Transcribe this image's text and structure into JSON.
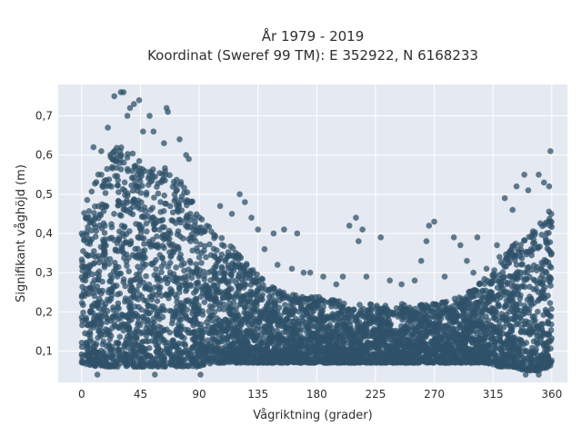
{
  "chart_data": {
    "type": "scatter",
    "title": [
      "År 1979 - 2019",
      "Koordinat (Sweref 99 TM): E 352922, N 6168233"
    ],
    "xlabel": "Vågriktning (grader)",
    "ylabel": "Signifikant våghöjd (m)",
    "xlim": [
      -18,
      372
    ],
    "ylim": [
      0.02,
      0.78
    ],
    "xticks": [
      0,
      45,
      90,
      135,
      180,
      225,
      270,
      315,
      360
    ],
    "yticks": [
      0.1,
      0.2,
      0.3,
      0.4,
      0.5,
      0.6,
      0.7
    ],
    "ytick_labels": [
      "0,1",
      "0,2",
      "0,3",
      "0,4",
      "0,5",
      "0,6",
      "0,7"
    ],
    "grid": true,
    "marker_color": "#2f5269",
    "plot_bg": "#e5e9f1",
    "envelope": {
      "direction": [
        0,
        10,
        20,
        30,
        40,
        50,
        60,
        70,
        80,
        90,
        100,
        110,
        120,
        130,
        140,
        150,
        160,
        170,
        180,
        190,
        200,
        210,
        220,
        230,
        240,
        250,
        260,
        270,
        280,
        290,
        300,
        310,
        320,
        330,
        340,
        350,
        360
      ],
      "dense_max": [
        0.45,
        0.55,
        0.6,
        0.63,
        0.61,
        0.56,
        0.58,
        0.55,
        0.52,
        0.45,
        0.41,
        0.38,
        0.35,
        0.31,
        0.28,
        0.26,
        0.25,
        0.24,
        0.24,
        0.23,
        0.23,
        0.22,
        0.22,
        0.22,
        0.22,
        0.22,
        0.22,
        0.22,
        0.23,
        0.24,
        0.26,
        0.29,
        0.33,
        0.37,
        0.4,
        0.42,
        0.47
      ],
      "dense_min": [
        0.07,
        0.06,
        0.06,
        0.06,
        0.06,
        0.06,
        0.06,
        0.06,
        0.06,
        0.06,
        0.07,
        0.07,
        0.07,
        0.07,
        0.07,
        0.07,
        0.07,
        0.07,
        0.07,
        0.07,
        0.07,
        0.07,
        0.07,
        0.07,
        0.07,
        0.07,
        0.07,
        0.07,
        0.07,
        0.07,
        0.07,
        0.07,
        0.06,
        0.06,
        0.05,
        0.05,
        0.06
      ]
    },
    "outliers": [
      [
        30,
        0.76
      ],
      [
        32,
        0.76
      ],
      [
        25,
        0.75
      ],
      [
        44,
        0.74
      ],
      [
        40,
        0.73
      ],
      [
        65,
        0.72
      ],
      [
        66,
        0.71
      ],
      [
        37,
        0.72
      ],
      [
        35,
        0.7
      ],
      [
        52,
        0.7
      ],
      [
        20,
        0.67
      ],
      [
        55,
        0.66
      ],
      [
        47,
        0.66
      ],
      [
        75,
        0.64
      ],
      [
        63,
        0.63
      ],
      [
        9,
        0.62
      ],
      [
        15,
        0.61
      ],
      [
        80,
        0.6
      ],
      [
        359,
        0.61
      ],
      [
        82,
        0.59
      ],
      [
        106,
        0.47
      ],
      [
        121,
        0.5
      ],
      [
        125,
        0.48
      ],
      [
        115,
        0.45
      ],
      [
        130,
        0.44
      ],
      [
        135,
        0.41
      ],
      [
        155,
        0.41
      ],
      [
        147,
        0.4
      ],
      [
        165,
        0.4
      ],
      [
        210,
        0.44
      ],
      [
        205,
        0.42
      ],
      [
        215,
        0.41
      ],
      [
        212,
        0.38
      ],
      [
        229,
        0.39
      ],
      [
        270,
        0.43
      ],
      [
        266,
        0.42
      ],
      [
        264,
        0.38
      ],
      [
        285,
        0.39
      ],
      [
        290,
        0.37
      ],
      [
        303,
        0.39
      ],
      [
        318,
        0.37
      ],
      [
        324,
        0.49
      ],
      [
        333,
        0.52
      ],
      [
        339,
        0.55
      ],
      [
        350,
        0.55
      ],
      [
        342,
        0.51
      ],
      [
        354,
        0.53
      ],
      [
        358,
        0.52
      ],
      [
        330,
        0.46
      ],
      [
        320,
        0.34
      ],
      [
        161,
        0.31
      ],
      [
        175,
        0.3
      ],
      [
        185,
        0.29
      ],
      [
        195,
        0.27
      ],
      [
        200,
        0.29
      ],
      [
        218,
        0.29
      ],
      [
        236,
        0.28
      ],
      [
        245,
        0.27
      ],
      [
        255,
        0.28
      ],
      [
        278,
        0.29
      ],
      [
        300,
        0.3
      ],
      [
        310,
        0.31
      ],
      [
        150,
        0.32
      ],
      [
        170,
        0.3
      ],
      [
        140,
        0.36
      ],
      [
        260,
        0.33
      ],
      [
        295,
        0.33
      ],
      [
        12,
        0.04
      ],
      [
        56,
        0.04
      ],
      [
        91,
        0.04
      ],
      [
        340,
        0.04
      ],
      [
        350,
        0.04
      ]
    ]
  }
}
